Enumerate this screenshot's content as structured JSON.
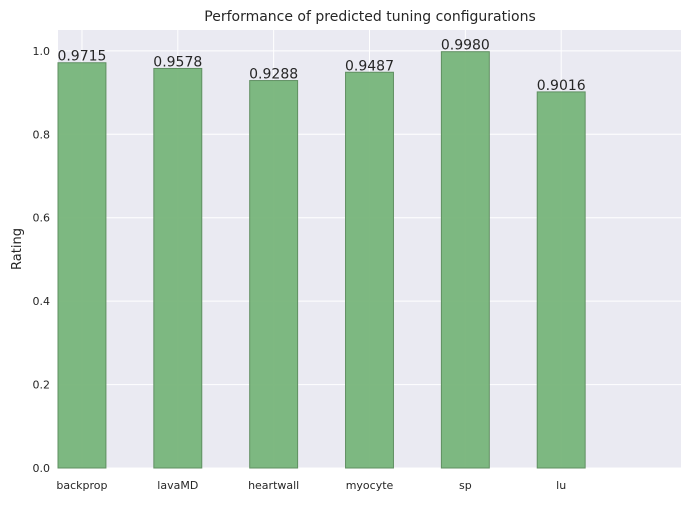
{
  "chart_data": {
    "type": "bar",
    "title": "Performance of predicted tuning configurations",
    "xlabel": "",
    "ylabel": "Rating",
    "categories": [
      "backprop",
      "lavaMD",
      "heartwall",
      "myocyte",
      "sp",
      "lu"
    ],
    "values": [
      0.9715,
      0.9578,
      0.9288,
      0.9487,
      0.998,
      0.9016
    ],
    "data_labels": [
      "0.9715",
      "0.9578",
      "0.9288",
      "0.9487",
      "0.9980",
      "0.9016"
    ],
    "yticks": [
      0.0,
      0.2,
      0.4,
      0.6,
      0.8,
      1.0
    ],
    "ytick_labels": [
      "0.0",
      "0.2",
      "0.4",
      "0.6",
      "0.8",
      "1.0"
    ],
    "ylim": [
      0,
      1.05
    ],
    "grid": true,
    "colors": {
      "bar_fill": "#77b57a",
      "bar_stroke": "#5f8f61",
      "background": "#eaeaf2",
      "grid": "#ffffff",
      "text": "#262626"
    }
  }
}
